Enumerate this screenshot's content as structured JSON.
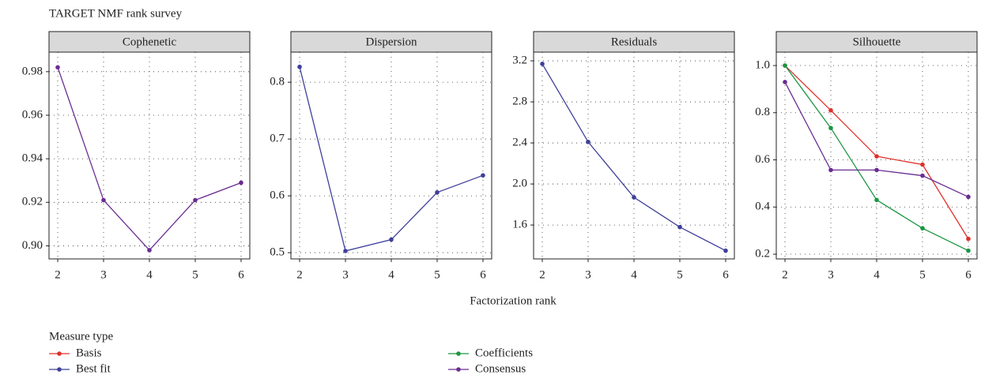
{
  "title": "TARGET NMF rank survey",
  "xlabel": "Factorization rank",
  "legend_title": "Measure type",
  "chart_data": [
    {
      "type": "line",
      "title": "Cophenetic",
      "x": [
        2,
        3,
        4,
        5,
        6
      ],
      "xlim": [
        1.81,
        6.19
      ],
      "xticks": [
        2,
        3,
        4,
        5,
        6
      ],
      "ylim": [
        0.894,
        0.989
      ],
      "yticks": [
        {
          "value": 0.9,
          "label": "0.90"
        },
        0.92,
        0.94,
        0.96,
        0.98
      ],
      "grid": true,
      "series": [
        {
          "color": "#6a2c91",
          "values": [
            0.982,
            0.921,
            0.898,
            0.921,
            0.929
          ]
        }
      ]
    },
    {
      "type": "line",
      "title": "Dispersion",
      "x": [
        2,
        3,
        4,
        5,
        6
      ],
      "xlim": [
        1.81,
        6.19
      ],
      "xticks": [
        2,
        3,
        4,
        5,
        6
      ],
      "ylim": [
        0.489,
        0.853
      ],
      "yticks": [
        0.5,
        0.6,
        0.7,
        0.8
      ],
      "grid": true,
      "series": [
        {
          "name": "Best fit",
          "color": "#3f3f9a",
          "values": [
            0.827,
            0.503,
            0.523,
            0.606,
            0.636
          ]
        }
      ]
    },
    {
      "type": "line",
      "title": "Residuals",
      "x": [
        2,
        3,
        4,
        5,
        6
      ],
      "xlim": [
        1.81,
        6.19
      ],
      "xticks": [
        2,
        3,
        4,
        5,
        6
      ],
      "ylim": [
        1.27,
        3.285
      ],
      "yticks": [
        1.6,
        {
          "value": 2,
          "label": "2.0"
        },
        2.4,
        2.8,
        3.2
      ],
      "grid": true,
      "series": [
        {
          "color": "#3f3f9a",
          "values": [
            3.17,
            2.41,
            1.87,
            1.58,
            1.35
          ]
        }
      ]
    },
    {
      "type": "line",
      "title": "Silhouette",
      "x": [
        2,
        3,
        4,
        5,
        6
      ],
      "xlim": [
        1.81,
        6.19
      ],
      "xticks": [
        2,
        3,
        4,
        5,
        6
      ],
      "ylim": [
        0.18,
        1.057
      ],
      "yticks": [
        0.2,
        0.4,
        0.6,
        0.8,
        {
          "value": 1,
          "label": "1.0"
        }
      ],
      "grid": true,
      "series": [
        {
          "name": "Basis",
          "color": "#e0302a",
          "values": [
            1.0,
            0.81,
            0.615,
            0.58,
            0.265
          ]
        },
        {
          "name": "Coefficients",
          "color": "#1a9641",
          "values": [
            1.0,
            0.735,
            0.43,
            0.31,
            0.215
          ]
        },
        {
          "name": "Consensus",
          "color": "#6a2c91",
          "values": [
            0.93,
            0.557,
            0.557,
            0.533,
            0.443
          ]
        }
      ]
    }
  ]
}
